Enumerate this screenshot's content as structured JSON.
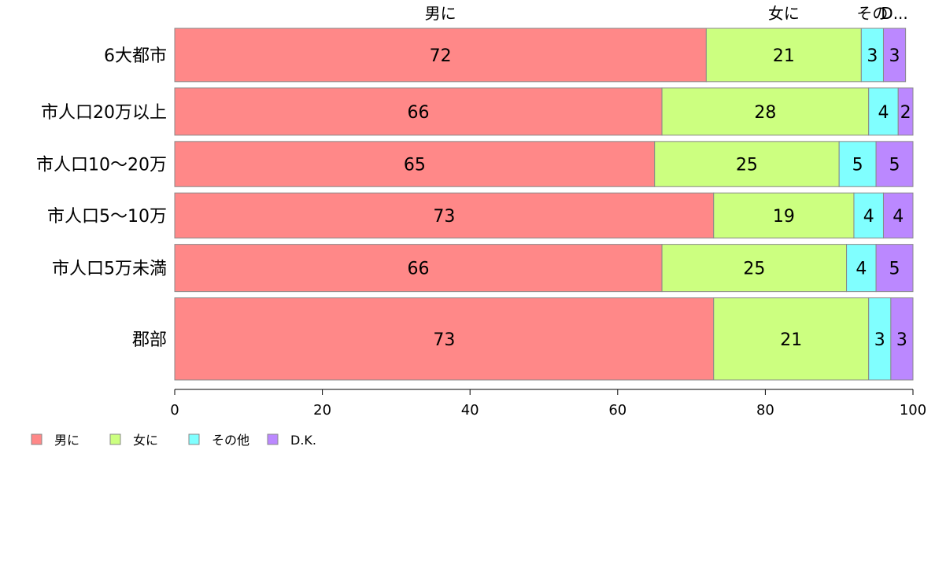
{
  "chart_data": {
    "type": "bar",
    "orientation": "horizontal",
    "stacked": true,
    "categories": [
      "6大都市",
      "市人口20万以上",
      "市人口10〜20万",
      "市人口5〜10万",
      "市人口5万未満",
      "郡部"
    ],
    "category_weights": [
      1.3,
      1.15,
      1.1,
      1.1,
      1.15,
      2.0
    ],
    "series": [
      {
        "name": "男に",
        "values": [
          72,
          66,
          65,
          73,
          66,
          73
        ],
        "color": "#ff8888"
      },
      {
        "name": "女に",
        "values": [
          21,
          28,
          25,
          19,
          25,
          21
        ],
        "color": "#ccff80"
      },
      {
        "name": "その他",
        "values": [
          3,
          4,
          5,
          4,
          4,
          3
        ],
        "color": "#80ffff"
      },
      {
        "name": "D.K.",
        "values": [
          3,
          2,
          5,
          4,
          5,
          3
        ],
        "color": "#bb88ff"
      }
    ],
    "top_labels": [
      "男に",
      "女に",
      "その",
      "D..."
    ],
    "xlim": [
      0,
      100
    ],
    "xticks": [
      0,
      20,
      40,
      60,
      80,
      100
    ],
    "legend_position": "bottom-left",
    "grid": false
  }
}
